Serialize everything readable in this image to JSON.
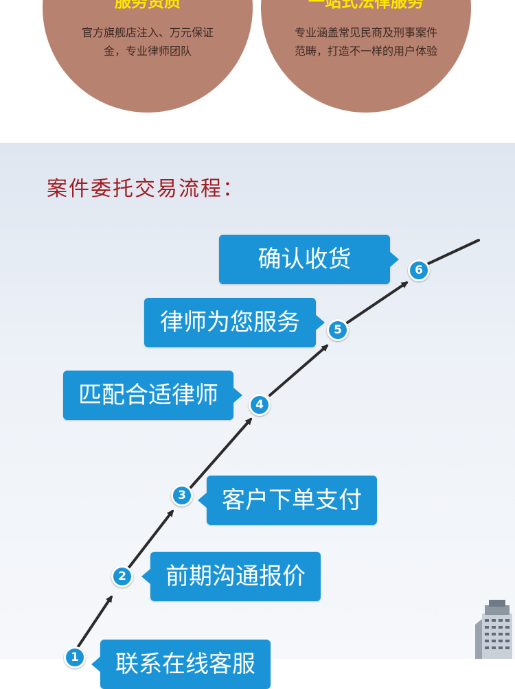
{
  "features": [
    {
      "title": "服务资质",
      "desc": "官方旗舰店注入、万元保证金，专业律师团队"
    },
    {
      "title": "一站式法律服务",
      "desc": "专业涵盖常见民商及刑事案件范畴，打造不一样的用户体验"
    }
  ],
  "process": {
    "title": "案件委托交易流程：",
    "steps": [
      {
        "num": "1",
        "label": "联系在线客服"
      },
      {
        "num": "2",
        "label": "前期沟通报价"
      },
      {
        "num": "3",
        "label": "客户下单支付"
      },
      {
        "num": "4",
        "label": "匹配合适律师"
      },
      {
        "num": "5",
        "label": "律师为您服务"
      },
      {
        "num": "6",
        "label": "确认收货"
      }
    ]
  },
  "colors": {
    "circle": "#b88270",
    "circle_title": "#ffe600",
    "step_blue": "#1a94d6",
    "process_title": "#a01d22"
  }
}
